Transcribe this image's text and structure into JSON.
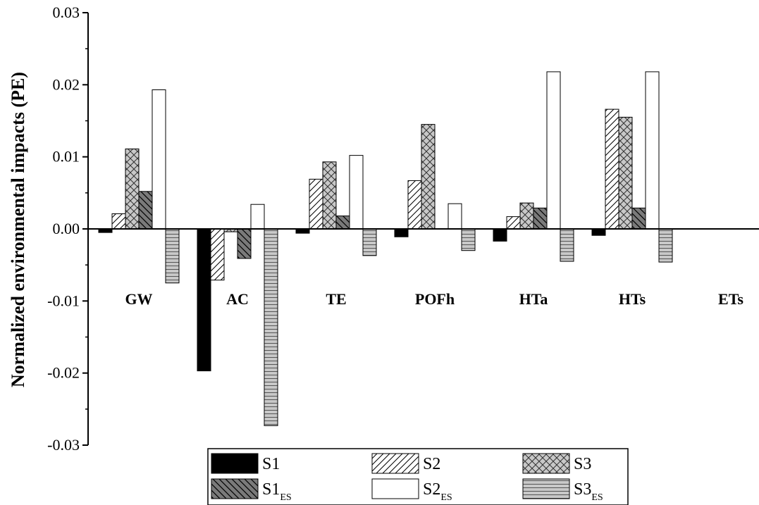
{
  "chart_data": {
    "type": "bar",
    "title": "",
    "xlabel": "",
    "ylabel": "Normalized environmental impacts (PE)",
    "ylim": [
      -0.03,
      0.03
    ],
    "yticks": [
      "0.03",
      "0.02",
      "0.01",
      "0.00",
      "-0.01",
      "-0.02",
      "-0.03"
    ],
    "grid": false,
    "legend_position": "bottom",
    "categories": [
      "GW",
      "AC",
      "TE",
      "POFh",
      "HTa",
      "HTs",
      "ETs"
    ],
    "series": [
      {
        "name": "S1",
        "sub": "",
        "pattern": "solid-black",
        "values": [
          -0.0005,
          -0.0197,
          -0.0006,
          -0.0011,
          -0.0017,
          -0.0009,
          0
        ]
      },
      {
        "name": "S2",
        "sub": "",
        "pattern": "diagonal",
        "values": [
          0.0021,
          -0.0071,
          0.0069,
          0.0067,
          0.0017,
          0.0166,
          0
        ]
      },
      {
        "name": "S3",
        "sub": "",
        "pattern": "crosshatch",
        "values": [
          0.0111,
          -0.0004,
          0.0093,
          0.0145,
          0.0036,
          0.0155,
          0
        ]
      },
      {
        "name": "S1",
        "sub": "ES",
        "pattern": "back-diagonal",
        "values": [
          0.0052,
          -0.0041,
          0.0018,
          0,
          0.0029,
          0.0029,
          0
        ]
      },
      {
        "name": "S2",
        "sub": "ES",
        "pattern": "white",
        "values": [
          0.0193,
          0.0034,
          0.0102,
          0.0035,
          0.0218,
          0.0218,
          0
        ]
      },
      {
        "name": "S3",
        "sub": "ES",
        "pattern": "horizontal",
        "values": [
          -0.0075,
          -0.0273,
          -0.0037,
          -0.003,
          -0.0045,
          -0.0046,
          0
        ]
      }
    ]
  }
}
